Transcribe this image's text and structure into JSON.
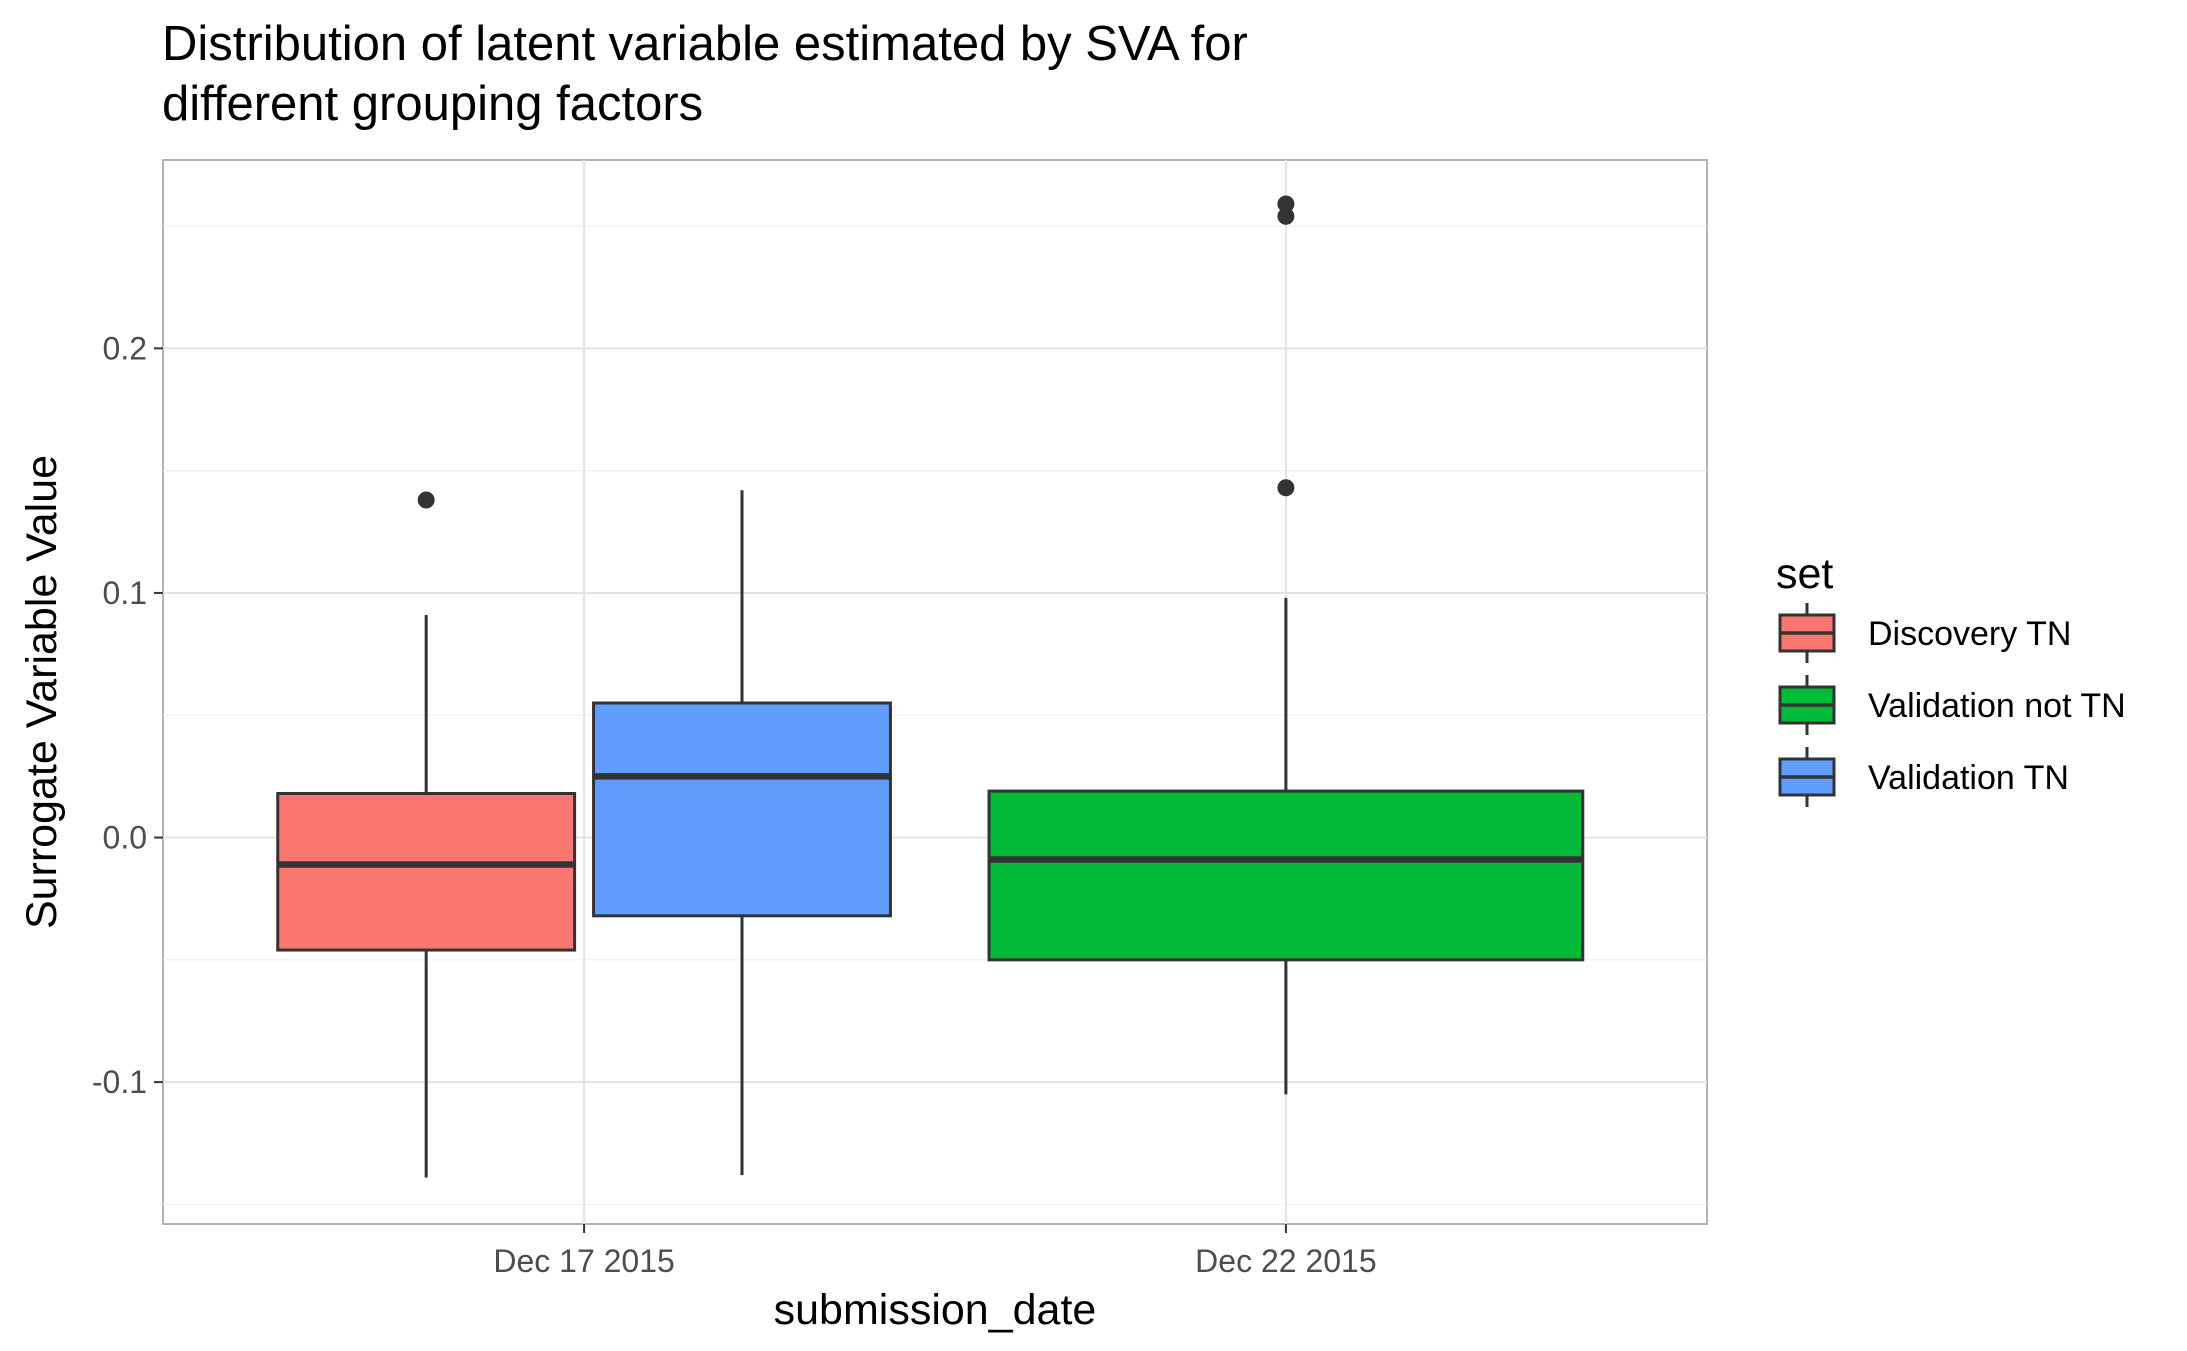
{
  "chart_data": {
    "type": "boxplot",
    "title_lines": [
      "Distribution of latent variable estimated by SVA for",
      "different grouping factors"
    ],
    "xlabel": "submission_date",
    "ylabel": "Surrogate Variable Value",
    "categories": [
      "Dec 17 2015",
      "Dec 22 2015"
    ],
    "ylim": [
      -0.158,
      0.277
    ],
    "yticks": [
      -0.1,
      0.0,
      0.1,
      0.2
    ],
    "ytick_labels": [
      "-0.1",
      "0.0",
      "0.1",
      "0.2"
    ],
    "grid": true,
    "legend": {
      "title": "set",
      "position": "right"
    },
    "series": [
      {
        "name": "Discovery TN",
        "color": "#F8766D",
        "boxes": [
          {
            "category": "Dec 17 2015",
            "slot": 0,
            "slots": 2,
            "min": -0.139,
            "q1": -0.046,
            "median": -0.011,
            "q3": 0.018,
            "max": 0.091,
            "outliers": [
              0.138
            ]
          }
        ]
      },
      {
        "name": "Validation not TN",
        "color": "#00BA38",
        "boxes": [
          {
            "category": "Dec 22 2015",
            "slot": 0,
            "slots": 1,
            "min": -0.105,
            "q1": -0.05,
            "median": -0.009,
            "q3": 0.019,
            "max": 0.098,
            "outliers": [
              0.143,
              0.254,
              0.259
            ]
          }
        ]
      },
      {
        "name": "Validation TN",
        "color": "#619CFF",
        "boxes": [
          {
            "category": "Dec 17 2015",
            "slot": 1,
            "slots": 2,
            "min": -0.138,
            "q1": -0.032,
            "median": 0.025,
            "q3": 0.055,
            "max": 0.142,
            "outliers": []
          }
        ]
      }
    ]
  }
}
